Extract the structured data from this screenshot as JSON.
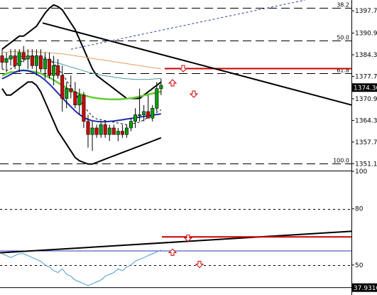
{
  "chart_data": [
    {
      "type": "candlestick",
      "ylim": [
        1349,
        1401
      ],
      "y_ticks": [
        "1397.70",
        "1390.90",
        "1384.30",
        "1377.70",
        "1370.90",
        "1364.30",
        "1357.70",
        "1351.10"
      ],
      "current_price_label": "1374.30",
      "current_price": 1374.3,
      "fib_levels": [
        {
          "label": "38.2",
          "price": 1398.6
        },
        {
          "label": "50.0",
          "price": 1388.6
        },
        {
          "label": "61.8",
          "price": 1378.7
        },
        {
          "label": "100.0",
          "price": 1351.1
        }
      ],
      "candles": [
        {
          "o": 1384,
          "h": 1386,
          "l": 1380,
          "c": 1382
        },
        {
          "o": 1382,
          "h": 1385,
          "l": 1379,
          "c": 1383
        },
        {
          "o": 1383,
          "h": 1386,
          "l": 1381,
          "c": 1384
        },
        {
          "o": 1384,
          "h": 1386,
          "l": 1380,
          "c": 1381
        },
        {
          "o": 1381,
          "h": 1386,
          "l": 1379,
          "c": 1385
        },
        {
          "o": 1385,
          "h": 1387,
          "l": 1382,
          "c": 1383
        },
        {
          "o": 1383,
          "h": 1386,
          "l": 1380,
          "c": 1384
        },
        {
          "o": 1384,
          "h": 1386,
          "l": 1380,
          "c": 1381
        },
        {
          "o": 1381,
          "h": 1386,
          "l": 1378,
          "c": 1384
        },
        {
          "o": 1384,
          "h": 1386,
          "l": 1379,
          "c": 1380
        },
        {
          "o": 1380,
          "h": 1385,
          "l": 1377,
          "c": 1383
        },
        {
          "o": 1383,
          "h": 1385,
          "l": 1377,
          "c": 1378
        },
        {
          "o": 1378,
          "h": 1384,
          "l": 1375,
          "c": 1381
        },
        {
          "o": 1381,
          "h": 1383,
          "l": 1377,
          "c": 1378
        },
        {
          "o": 1378,
          "h": 1381,
          "l": 1367,
          "c": 1371
        },
        {
          "o": 1371,
          "h": 1376,
          "l": 1368,
          "c": 1374
        },
        {
          "o": 1374,
          "h": 1378,
          "l": 1371,
          "c": 1373
        },
        {
          "o": 1373,
          "h": 1376,
          "l": 1368,
          "c": 1369
        },
        {
          "o": 1369,
          "h": 1374,
          "l": 1366,
          "c": 1372
        },
        {
          "o": 1372,
          "h": 1373,
          "l": 1362,
          "c": 1364
        },
        {
          "o": 1364,
          "h": 1366,
          "l": 1356,
          "c": 1360
        },
        {
          "o": 1360,
          "h": 1364,
          "l": 1355,
          "c": 1362
        },
        {
          "o": 1362,
          "h": 1363,
          "l": 1359,
          "c": 1360
        },
        {
          "o": 1360,
          "h": 1364,
          "l": 1359,
          "c": 1363
        },
        {
          "o": 1363,
          "h": 1364,
          "l": 1359,
          "c": 1360
        },
        {
          "o": 1360,
          "h": 1363,
          "l": 1358,
          "c": 1362
        },
        {
          "o": 1362,
          "h": 1363,
          "l": 1360,
          "c": 1360
        },
        {
          "o": 1360,
          "h": 1362,
          "l": 1358,
          "c": 1361
        },
        {
          "o": 1361,
          "h": 1363,
          "l": 1359,
          "c": 1360
        },
        {
          "o": 1360,
          "h": 1363,
          "l": 1359,
          "c": 1362
        },
        {
          "o": 1362,
          "h": 1365,
          "l": 1361,
          "c": 1364
        },
        {
          "o": 1364,
          "h": 1368,
          "l": 1362,
          "c": 1366
        },
        {
          "o": 1366,
          "h": 1374,
          "l": 1364,
          "c": 1366
        },
        {
          "o": 1366,
          "h": 1369,
          "l": 1364,
          "c": 1367
        },
        {
          "o": 1367,
          "h": 1372,
          "l": 1365,
          "c": 1365
        },
        {
          "o": 1365,
          "h": 1369,
          "l": 1364,
          "c": 1368
        },
        {
          "o": 1368,
          "h": 1376,
          "l": 1367,
          "c": 1374
        },
        {
          "o": 1374,
          "h": 1377,
          "l": 1372,
          "c": 1375
        }
      ],
      "colors": {
        "bull": "#00a000",
        "bear": "#cc0000",
        "outline": "#000000",
        "fib": "#000000",
        "resistance": "#cc0000",
        "trend": "#000000",
        "bollinger": "#000000",
        "ma_green": "#66cc33",
        "ma_blue": "#1f2fb0",
        "ma_teal": "#4a9a9a",
        "ma_orange": "#e0a060",
        "dashed_blue": "#2a3ab0",
        "arrow": "#cc0000"
      }
    },
    {
      "type": "line",
      "ylim": [
        34,
        100
      ],
      "y_ticks": [
        "100",
        "80",
        "50"
      ],
      "current_value_label": "37.9310",
      "current_value": 37.931,
      "colors": {
        "line": "#4a9ad6",
        "trend": "#000000",
        "resistance": "#cc0000",
        "hline": "#2a3ab0"
      }
    }
  ]
}
